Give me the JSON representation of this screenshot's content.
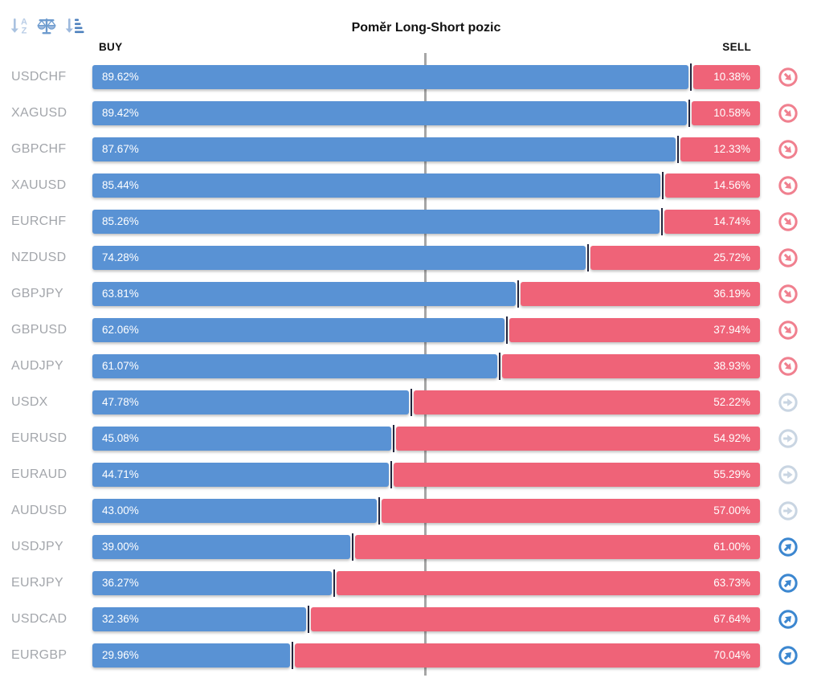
{
  "title": "Poměr Long-Short pozic",
  "header": {
    "buy_label": "BUY",
    "sell_label": "SELL"
  },
  "toolbar": {
    "icons": [
      {
        "name": "sort-alphabetical-icon"
      },
      {
        "name": "balance-scale-icon"
      },
      {
        "name": "sort-amount-icon"
      }
    ]
  },
  "colors": {
    "buy": "#5992d4",
    "sell": "#ef6378",
    "divider": "#23263e",
    "center_line": "#a6a6a6",
    "label": "#a3a6ab",
    "heading": "#111111",
    "sig_sell": "#f0808f",
    "sig_neutral": "#c9d5e2",
    "sig_buy": "#3c87d0"
  },
  "chart_data": {
    "type": "bar",
    "orientation": "horizontal-stacked",
    "title": "Poměr Long-Short pozic",
    "categories": [
      "USDCHF",
      "XAGUSD",
      "GBPCHF",
      "XAUUSD",
      "EURCHF",
      "NZDUSD",
      "GBPJPY",
      "GBPUSD",
      "AUDJPY",
      "USDX",
      "EURUSD",
      "EURAUD",
      "AUDUSD",
      "USDJPY",
      "EURJPY",
      "USDCAD",
      "EURGBP"
    ],
    "series": [
      {
        "name": "BUY",
        "values": [
          89.62,
          89.42,
          87.67,
          85.44,
          85.26,
          74.28,
          63.81,
          62.06,
          61.07,
          47.78,
          45.08,
          44.71,
          43.0,
          39.0,
          36.27,
          32.36,
          29.96
        ]
      },
      {
        "name": "SELL",
        "values": [
          10.38,
          10.58,
          12.33,
          14.56,
          14.74,
          25.72,
          36.19,
          37.94,
          38.93,
          52.22,
          54.92,
          55.29,
          57.0,
          61.0,
          63.73,
          67.64,
          70.04
        ]
      }
    ],
    "signals": [
      "sell",
      "sell",
      "sell",
      "sell",
      "sell",
      "sell",
      "sell",
      "sell",
      "sell",
      "neutral",
      "neutral",
      "neutral",
      "neutral",
      "buy",
      "buy",
      "buy",
      "buy"
    ],
    "xlim": [
      0,
      100
    ],
    "midline": 50,
    "value_format": "percent_2dp",
    "legend_position": "none",
    "grid": false
  }
}
